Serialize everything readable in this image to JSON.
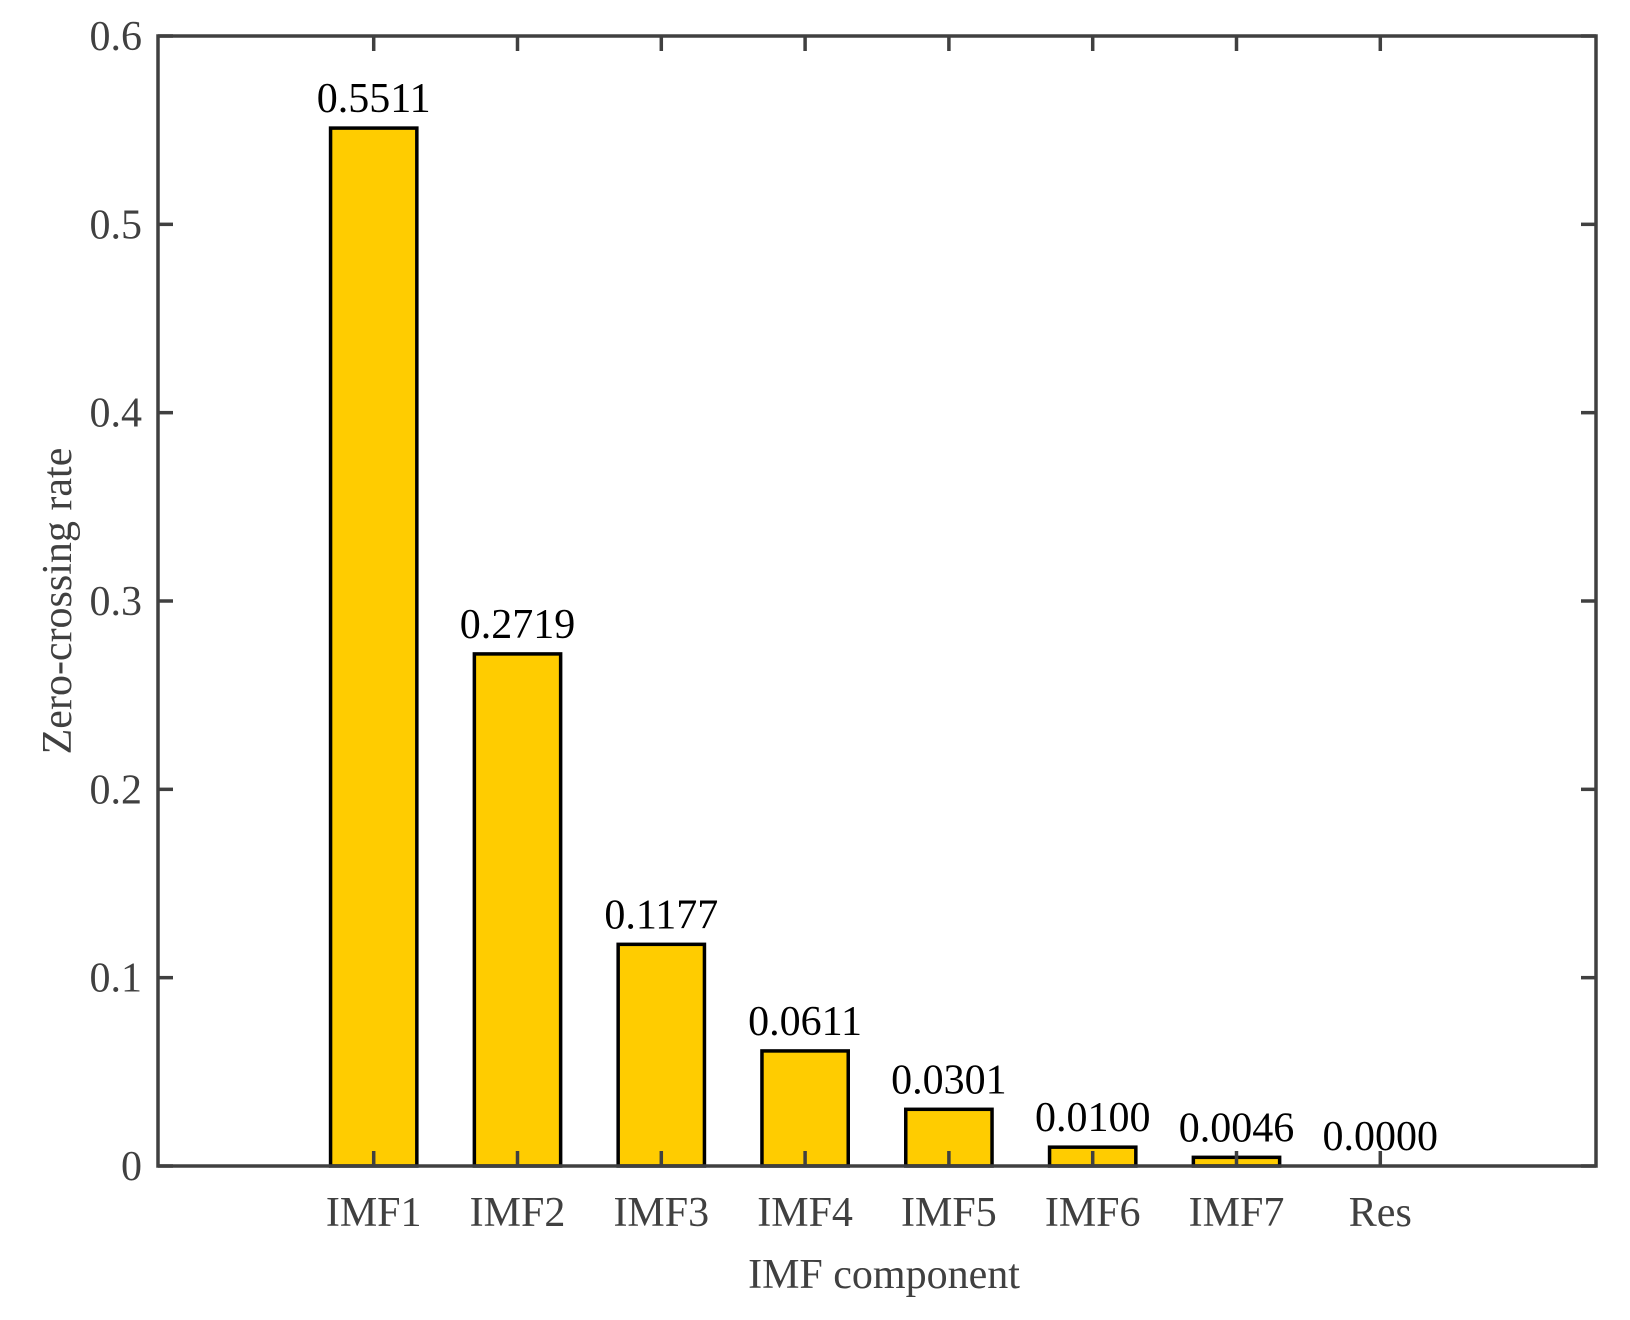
{
  "chart_data": {
    "type": "bar",
    "title": "",
    "xlabel": "IMF component",
    "ylabel": "Zero-crossing rate",
    "categories": [
      "IMF1",
      "IMF2",
      "IMF3",
      "IMF4",
      "IMF5",
      "IMF6",
      "IMF7",
      "Res"
    ],
    "values": [
      0.5511,
      0.2719,
      0.1177,
      0.0611,
      0.0301,
      0.01,
      0.0046,
      0.0
    ],
    "data_labels": [
      "0.5511",
      "0.2719",
      "0.1177",
      "0.0611",
      "0.0301",
      "0.0100",
      "0.0046",
      "0.0000"
    ],
    "ylim": [
      0,
      0.6
    ],
    "yticks": [
      0,
      0.1,
      0.2,
      0.3,
      0.4,
      0.5,
      0.6
    ],
    "ytick_labels": [
      "0",
      "0.1",
      "0.2",
      "0.3",
      "0.4",
      "0.5",
      "0.6"
    ],
    "grid": false,
    "legend": "none",
    "colors": {
      "bar_fill": "#FFCC00",
      "bar_edge": "#000000",
      "axis": "#404040",
      "background": "#FFFFFF"
    }
  }
}
